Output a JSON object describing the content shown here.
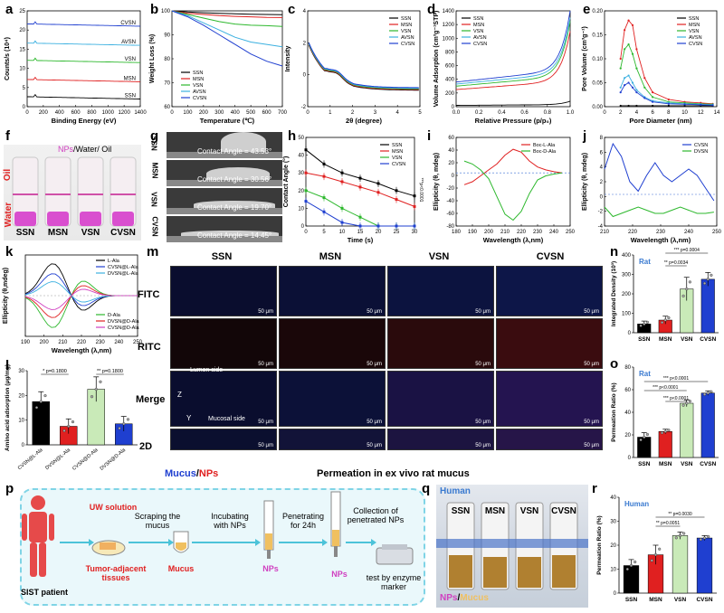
{
  "panel_labels": [
    "a",
    "b",
    "c",
    "d",
    "e",
    "f",
    "g",
    "h",
    "i",
    "j",
    "k",
    "l",
    "m",
    "n",
    "o",
    "p",
    "q",
    "r"
  ],
  "colors": {
    "ssn": "#000000",
    "msn": "#e02020",
    "vsn": "#2db82d",
    "avsn": "#3bb0e0",
    "cvsn": "#1f3fd0",
    "d_ala": "#2db82d",
    "l_ala": "#e02020",
    "pink": "#d040c0"
  },
  "panel_a": {
    "chart_data": {
      "type": "line",
      "title": "",
      "xlabel": "Binding Energy (eV)",
      "ylabel": "Counts/s (10⁴)",
      "xlim": [
        0,
        1400
      ],
      "ylim": [
        0,
        25
      ],
      "xticks": [
        "0",
        "200",
        "400",
        "600",
        "800",
        "1000",
        "1200",
        "1400"
      ],
      "yticks": [
        "0",
        "5",
        "10",
        "15",
        "20",
        "25"
      ],
      "series": [
        {
          "name": "CVSN",
          "offset": 21
        },
        {
          "name": "AVSN",
          "offset": 16
        },
        {
          "name": "VSN",
          "offset": 11.5
        },
        {
          "name": "MSN",
          "offset": 6.5
        },
        {
          "name": "SSN",
          "offset": 2
        }
      ]
    }
  },
  "panel_b": {
    "chart_data": {
      "type": "line",
      "xlabel": "Temperature (℃)",
      "ylabel": "Weight Loss (%)",
      "xlim": [
        0,
        700
      ],
      "ylim": [
        60,
        100
      ],
      "xticks": [
        "0",
        "100",
        "200",
        "300",
        "400",
        "500",
        "600",
        "700"
      ],
      "yticks": [
        "60",
        "70",
        "80",
        "90",
        "100"
      ],
      "series": [
        {
          "name": "SSN",
          "x": [
            0,
            100,
            200,
            300,
            400,
            500,
            600,
            700
          ],
          "values": [
            100,
            99.5,
            99.2,
            99,
            98.8,
            98.6,
            98.5,
            98.4
          ]
        },
        {
          "name": "MSN",
          "x": [
            0,
            100,
            200,
            300,
            400,
            500,
            600,
            700
          ],
          "values": [
            100,
            99,
            98.5,
            98,
            97.7,
            97.5,
            97.3,
            97.2
          ]
        },
        {
          "name": "VSN",
          "x": [
            0,
            100,
            200,
            300,
            400,
            500,
            600,
            700
          ],
          "values": [
            100,
            98.5,
            97,
            95.5,
            94.5,
            94,
            93.8,
            93.5
          ]
        },
        {
          "name": "AVSN",
          "x": [
            0,
            100,
            200,
            300,
            400,
            500,
            600,
            700
          ],
          "values": [
            100,
            98,
            95,
            92,
            89,
            87,
            86,
            85
          ]
        },
        {
          "name": "CVSN",
          "x": [
            0,
            100,
            200,
            300,
            400,
            500,
            600,
            700
          ],
          "values": [
            100,
            97.5,
            94,
            90,
            86,
            82,
            79,
            77
          ]
        }
      ]
    }
  },
  "panel_c": {
    "chart_data": {
      "type": "line",
      "xlabel": "2θ (degree)",
      "ylabel": "Intensity",
      "xlim": [
        0,
        5
      ],
      "ylim": [
        -3,
        4
      ],
      "xticks": [
        "0",
        "1",
        "2",
        "3",
        "4",
        "5"
      ],
      "yticks": [
        "-2",
        "0",
        "2",
        "4"
      ],
      "series": [
        {
          "name": "SSN"
        },
        {
          "name": "MSN"
        },
        {
          "name": "VSN"
        },
        {
          "name": "AVSN"
        },
        {
          "name": "CVSN"
        }
      ]
    }
  },
  "panel_d": {
    "chart_data": {
      "type": "line",
      "xlabel": "Relative Pressure (p/p₀)",
      "ylabel": "Volume Adsorption (cm³g⁻¹STP)",
      "xlim": [
        0,
        1
      ],
      "ylim": [
        0,
        1400
      ],
      "xticks": [
        "0.0",
        "0.2",
        "0.4",
        "0.6",
        "0.8",
        "1.0"
      ],
      "yticks": [
        "0",
        "200",
        "400",
        "600",
        "800",
        "1000",
        "1200",
        "1400"
      ],
      "series": [
        {
          "name": "SSN"
        },
        {
          "name": "MSN"
        },
        {
          "name": "VSN"
        },
        {
          "name": "AVSN"
        },
        {
          "name": "CVSN"
        }
      ]
    }
  },
  "panel_e": {
    "chart_data": {
      "type": "line",
      "xlabel": "Pore Diameter (nm)",
      "ylabel": "Pore Volume (cm³g⁻¹)",
      "xlim": [
        0,
        14
      ],
      "ylim": [
        0,
        0.2
      ],
      "xticks": [
        "0",
        "2",
        "4",
        "6",
        "8",
        "10",
        "12",
        "14"
      ],
      "yticks": [
        "0.00",
        "0.05",
        "0.10",
        "0.15",
        "0.20"
      ],
      "series": [
        {
          "name": "SSN",
          "x": [
            2,
            3,
            4,
            6,
            8,
            10,
            12,
            13.5
          ],
          "values": [
            0.002,
            0.002,
            0.002,
            0.002,
            0.002,
            0.002,
            0.002,
            0.002
          ]
        },
        {
          "name": "MSN",
          "x": [
            2,
            2.5,
            3,
            3.5,
            4,
            5,
            6,
            8,
            10,
            12,
            13.5
          ],
          "values": [
            0.1,
            0.16,
            0.18,
            0.17,
            0.12,
            0.06,
            0.03,
            0.015,
            0.01,
            0.008,
            0.006
          ]
        },
        {
          "name": "VSN",
          "x": [
            2,
            2.5,
            3,
            3.5,
            4,
            5,
            6,
            8,
            10,
            12,
            13.5
          ],
          "values": [
            0.08,
            0.12,
            0.13,
            0.11,
            0.08,
            0.04,
            0.02,
            0.01,
            0.008,
            0.006,
            0.005
          ]
        },
        {
          "name": "AVSN",
          "x": [
            2,
            2.5,
            3,
            3.5,
            4,
            5,
            6,
            8,
            10,
            12,
            13.5
          ],
          "values": [
            0.04,
            0.06,
            0.065,
            0.05,
            0.035,
            0.02,
            0.012,
            0.008,
            0.006,
            0.005,
            0.004
          ]
        },
        {
          "name": "CVSN",
          "x": [
            2,
            2.5,
            3,
            3.5,
            4,
            5,
            6,
            8,
            10,
            12,
            13.5
          ],
          "values": [
            0.03,
            0.045,
            0.05,
            0.04,
            0.03,
            0.018,
            0.01,
            0.006,
            0.005,
            0.004,
            0.003
          ]
        }
      ]
    }
  },
  "panel_f": {
    "legend_nps": "NPs",
    "legend_slash": "/",
    "legend_water_oil": "Water/ Oil",
    "side_oil": "Oil",
    "side_water": "Water",
    "labels": [
      "SSN",
      "MSN",
      "VSN",
      "CVSN"
    ]
  },
  "panel_g": {
    "rows": [
      {
        "name": "SSN",
        "angle": "Contact Angle = 43.53°"
      },
      {
        "name": "MSN",
        "angle": "Contact Angle = 30.56°"
      },
      {
        "name": "VSN",
        "angle": "Contact Angle = 19.70°"
      },
      {
        "name": "CVSN",
        "angle": "Contact Angle = 14.45°"
      }
    ]
  },
  "panel_h": {
    "chart_data": {
      "type": "line",
      "xlabel": "Time (s)",
      "ylabel": "Contact Angle (°)",
      "xlim": [
        0,
        30
      ],
      "ylim": [
        0,
        50
      ],
      "xticks": [
        "0",
        "5",
        "10",
        "15",
        "20",
        "25",
        "30"
      ],
      "yticks": [
        "0",
        "10",
        "20",
        "30",
        "40",
        "50"
      ],
      "pvalue": "***p<0.0001",
      "series": [
        {
          "name": "SSN",
          "x": [
            0,
            5,
            10,
            15,
            20,
            25,
            30
          ],
          "values": [
            43,
            35,
            30,
            27,
            24,
            20,
            17
          ]
        },
        {
          "name": "MSN",
          "x": [
            0,
            5,
            10,
            15,
            20,
            25,
            30
          ],
          "values": [
            30,
            28,
            25,
            22,
            19,
            15,
            11
          ]
        },
        {
          "name": "VSN",
          "x": [
            0,
            5,
            10,
            15,
            20,
            25,
            30
          ],
          "values": [
            20,
            16,
            10,
            5,
            0,
            0,
            0
          ]
        },
        {
          "name": "CVSN",
          "x": [
            0,
            5,
            10,
            15,
            20,
            25,
            30
          ],
          "values": [
            14,
            8,
            2,
            0,
            0,
            0,
            0
          ]
        }
      ]
    }
  },
  "panel_i": {
    "chart_data": {
      "type": "line",
      "xlabel": "Wavelength (λ,nm)",
      "ylabel": "Ellipticity (θ, mdeg)",
      "xlim": [
        180,
        250
      ],
      "ylim": [
        -90,
        60
      ],
      "xticks": [
        "180",
        "190",
        "200",
        "210",
        "220",
        "230",
        "240",
        "250"
      ],
      "yticks": [
        "-80",
        "-60",
        "-40",
        "-20",
        "0",
        "20",
        "40",
        "60"
      ],
      "series": [
        {
          "name": "Boc-L-Ala",
          "x": [
            185,
            190,
            195,
            200,
            205,
            210,
            215,
            220,
            225,
            230,
            235,
            240,
            245
          ],
          "values": [
            -20,
            -15,
            -5,
            5,
            15,
            30,
            40,
            35,
            20,
            10,
            5,
            2,
            0
          ]
        },
        {
          "name": "Boc-D-Ala",
          "x": [
            185,
            190,
            195,
            200,
            205,
            210,
            215,
            220,
            225,
            230,
            235,
            240,
            245
          ],
          "values": [
            20,
            15,
            5,
            -10,
            -40,
            -70,
            -80,
            -65,
            -35,
            -12,
            -5,
            -2,
            0
          ]
        }
      ]
    }
  },
  "panel_j": {
    "chart_data": {
      "type": "line",
      "xlabel": "Wavelength (λ,nm)",
      "ylabel": "Ellipticity (θ, mdeg)",
      "xlim": [
        210,
        250
      ],
      "ylim": [
        -5,
        9
      ],
      "xticks": [
        "210",
        "220",
        "230",
        "240",
        "250"
      ],
      "yticks": [
        "-4",
        "-2",
        "0",
        "2",
        "4",
        "6",
        "8"
      ],
      "series": [
        {
          "name": "CVSN",
          "x": [
            210,
            213,
            216,
            219,
            222,
            225,
            228,
            231,
            234,
            237,
            240,
            243,
            246,
            249
          ],
          "values": [
            4,
            8,
            6,
            2,
            0.5,
            3,
            5,
            3,
            2,
            3,
            4,
            3,
            1,
            -1
          ]
        },
        {
          "name": "DVSN",
          "x": [
            210,
            213,
            216,
            219,
            222,
            225,
            228,
            231,
            234,
            237,
            240,
            243,
            246,
            249
          ],
          "values": [
            -2,
            -3.5,
            -3,
            -2.5,
            -2,
            -2.5,
            -3,
            -3,
            -2.5,
            -2,
            -2.5,
            -3,
            -3,
            -2.8
          ]
        }
      ]
    }
  },
  "panel_k": {
    "chart_data": {
      "type": "line",
      "xlabel": "Wavelength (λ,nm)",
      "ylabel": "Ellipticity (θ,mdeg)",
      "xlim": [
        190,
        250
      ],
      "ylim": [
        -4,
        4
      ],
      "xticks": [
        "190",
        "200",
        "210",
        "220",
        "230",
        "240",
        "250"
      ],
      "legend_top": [
        "L-Ala",
        "CVSN@L-Ala",
        "DVSN@L-Ala"
      ],
      "legend_bottom": [
        "D-Ala",
        "DVSN@D-Ala",
        "CVSN@D-Ala"
      ],
      "series": [
        {
          "name": "L-Ala"
        },
        {
          "name": "CVSN@L-Ala"
        },
        {
          "name": "DVSN@L-Ala"
        },
        {
          "name": "D-Ala"
        },
        {
          "name": "DVSN@D-Ala"
        },
        {
          "name": "CVSN@D-Ala"
        }
      ]
    }
  },
  "panel_l": {
    "chart_data": {
      "type": "bar",
      "ylabel": "Amino acid adsorption (μg/mg)",
      "ylim": [
        0,
        30
      ],
      "yticks": [
        "0",
        "10",
        "20",
        "30"
      ],
      "categories": [
        "CVSN@L-Ala",
        "DVSN@L-Ala",
        "CVSN@D-Ala",
        "DVSN@D-Ala"
      ],
      "values": [
        17.5,
        7.5,
        22.5,
        8.5
      ],
      "errors": [
        4,
        3,
        5,
        3
      ],
      "pvalues": [
        "* p=0.1800",
        "** p=0.1800"
      ]
    }
  },
  "panel_m": {
    "columns": [
      "SSN",
      "MSN",
      "VSN",
      "CVSN"
    ],
    "rows": [
      "FITC",
      "RITC",
      "Merge",
      "2D"
    ],
    "scale": "50 μm",
    "lumen": "Lumen side",
    "mucosal": "Mucosal side",
    "caption_mucus": "Mucus",
    "caption_slash": "/",
    "caption_nps": "NPs",
    "caption": "Permeation in ex vivo rat mucus",
    "axis_z": "Z",
    "axis_x": "X",
    "axis_y": "Y"
  },
  "panel_n": {
    "chart_data": {
      "type": "bar",
      "tag": "Rat",
      "ylabel": "Integrated Density (10³)",
      "ylim": [
        0,
        400
      ],
      "yticks": [
        "0",
        "100",
        "200",
        "300",
        "400"
      ],
      "categories": [
        "SSN",
        "MSN",
        "VSN",
        "CVSN"
      ],
      "values": [
        45,
        65,
        225,
        275
      ],
      "errors": [
        15,
        20,
        60,
        35
      ],
      "pvalues": [
        "*** p=0.0004",
        "** p=0.0034"
      ]
    }
  },
  "panel_o": {
    "chart_data": {
      "type": "bar",
      "tag": "Rat",
      "ylabel": "Permeation Ratio (%)",
      "ylim": [
        0,
        80
      ],
      "yticks": [
        "0",
        "20",
        "40",
        "60",
        "80"
      ],
      "categories": [
        "SSN",
        "MSN",
        "VSN",
        "CVSN"
      ],
      "values": [
        18,
        23,
        48,
        57
      ],
      "errors": [
        4,
        2,
        3,
        2
      ],
      "pvalues": [
        "*** p<0.0001",
        "*** p<0.0001",
        "*** p<0.0001"
      ]
    }
  },
  "panel_p": {
    "patient": "SIST patient",
    "uw": "UW solution",
    "tissue": "Tumor-adjacent tissues",
    "scrape": "Scraping the mucus",
    "mucus": "Mucus",
    "incubate": "Incubating with NPs",
    "nps1": "NPs",
    "penetrate": "Penetrating for 24h",
    "nps2": "NPs",
    "collect": "Collection of penetrated NPs",
    "test": "test by enzyme marker"
  },
  "panel_q": {
    "tag": "Human",
    "labels": [
      "SSN",
      "MSN",
      "VSN",
      "CVSN"
    ],
    "legend_nps": "NPs",
    "legend_slash": "/",
    "legend_mucus": "Mucus"
  },
  "panel_r": {
    "chart_data": {
      "type": "bar",
      "tag": "Human",
      "ylabel": "Permeation Ratio (%)",
      "ylim": [
        0,
        40
      ],
      "yticks": [
        "0",
        "10",
        "20",
        "30",
        "40"
      ],
      "categories": [
        "SSN",
        "MSN",
        "VSN",
        "CVSN"
      ],
      "values": [
        11.5,
        16,
        24,
        23
      ],
      "errors": [
        2.5,
        4,
        1.5,
        1
      ],
      "pvalues": [
        "** p=0.0051",
        "** p=0.0030"
      ]
    }
  }
}
